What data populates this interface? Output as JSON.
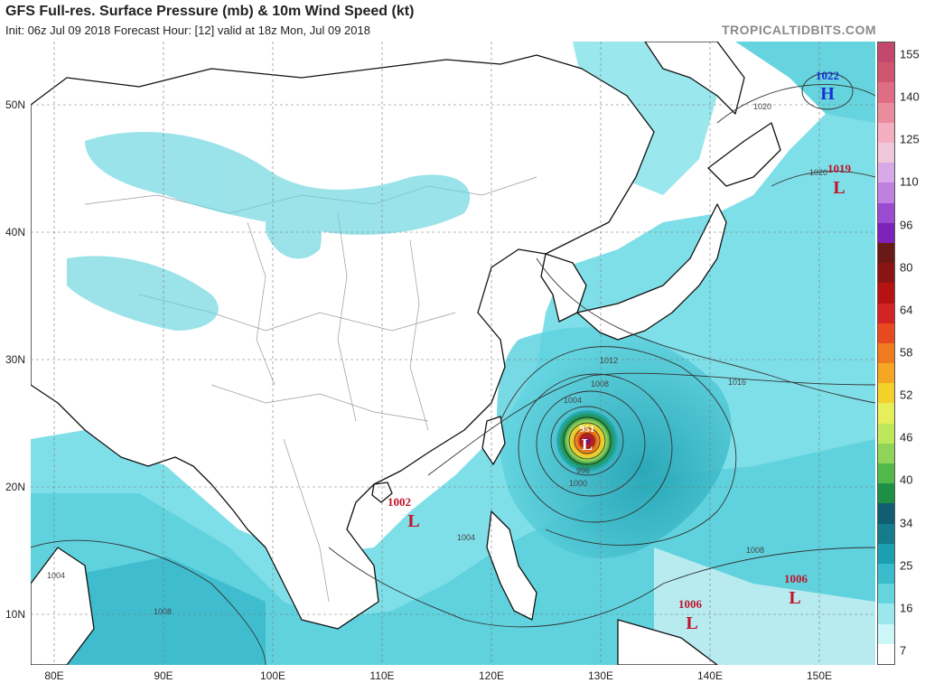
{
  "header": {
    "title": "GFS Full-res. Surface Pressure (mb) & 10m Wind Speed (kt)",
    "subtitle": "Init: 06z Jul 09 2018   Forecast Hour: [12]   valid at 18z Mon, Jul 09 2018",
    "brand": "TROPICALTIDBITS.COM"
  },
  "legend": {
    "labels": [
      "155",
      "140",
      "125",
      "110",
      "96",
      "80",
      "64",
      "58",
      "52",
      "46",
      "40",
      "34",
      "25",
      "16",
      "7"
    ],
    "colors": [
      "#c4486e",
      "#d0566f",
      "#df6e85",
      "#eb8c9e",
      "#f3aec0",
      "#f0c6da",
      "#d9a8e8",
      "#c080e0",
      "#9b4bd0",
      "#7d22b8",
      "#6a1a16",
      "#8a1414",
      "#b51212",
      "#d42323",
      "#e84a1f",
      "#f07a1f",
      "#f5a623",
      "#f2d12a",
      "#e6ef5a",
      "#bde85a",
      "#8fd35a",
      "#52b84a",
      "#1f8f45",
      "#115e73",
      "#147c8c",
      "#1c9fb0",
      "#3bbccc",
      "#66d4de",
      "#9ae7ee",
      "#ccf6f8",
      "#ffffff"
    ]
  },
  "axes": {
    "lat_labels": [
      "50N",
      "40N",
      "30N",
      "20N",
      "10N"
    ],
    "lon_labels": [
      "80E",
      "90E",
      "100E",
      "110E",
      "120E",
      "130E",
      "140E",
      "150E"
    ]
  },
  "pressure_systems": [
    {
      "type": "H",
      "value": "1022"
    },
    {
      "type": "L",
      "value": "1019"
    },
    {
      "type": "L",
      "value": "951"
    },
    {
      "type": "L",
      "value": "1002"
    },
    {
      "type": "L",
      "value": "1006"
    },
    {
      "type": "L",
      "value": "1006"
    }
  ],
  "isobar_labels": [
    "1020",
    "1020",
    "1016",
    "1012",
    "1008",
    "1004",
    "1000",
    "996",
    "1004",
    "1004",
    "1008",
    "1008"
  ],
  "colors": {
    "low_red": "#c0142a",
    "high_blue": "#1a2fd0",
    "ocean_light": "#a9ecf2",
    "ocean_mid": "#5fd2de",
    "ocean_dark": "#29afc4"
  }
}
